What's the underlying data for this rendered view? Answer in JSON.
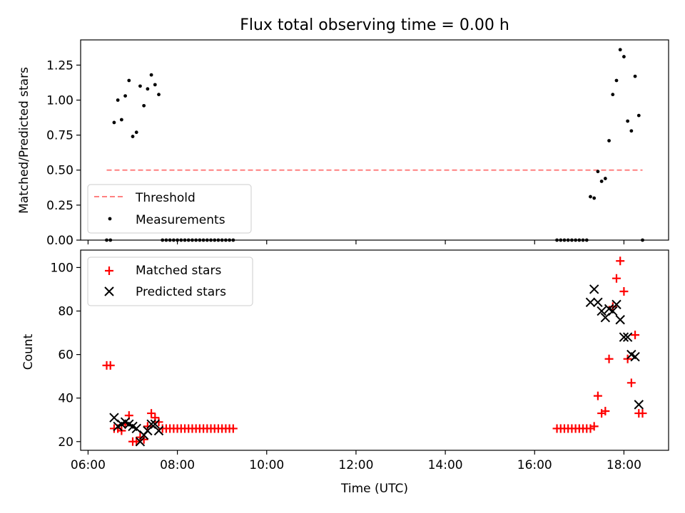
{
  "title": "Flux total observing time = 0.00 h",
  "chart_data": [
    {
      "type": "scatter",
      "ylabel": "Matched/Predicted stars",
      "xlim": [
        "05:50",
        "19:00"
      ],
      "ylim": [
        0,
        1.43
      ],
      "yticks": [
        0.0,
        0.25,
        0.5,
        0.75,
        1.0,
        1.25
      ],
      "ytick_labels": [
        "0.00",
        "0.25",
        "0.50",
        "0.75",
        "1.00",
        "1.25"
      ],
      "legend": {
        "placement": "lower-left",
        "entries": [
          "Threshold",
          "Measurements"
        ]
      },
      "threshold": {
        "name": "Threshold",
        "y": 0.5,
        "x_range": [
          "06:25",
          "18:25"
        ],
        "color": "#ff8080",
        "style": "dashed"
      },
      "series": [
        {
          "name": "Measurements",
          "color": "#000000",
          "marker": "dot",
          "points": [
            [
              "06:25",
              0
            ],
            [
              "06:30",
              0
            ],
            [
              "06:35",
              0.84
            ],
            [
              "06:40",
              1.0
            ],
            [
              "06:45",
              0.86
            ],
            [
              "06:50",
              1.03
            ],
            [
              "06:55",
              1.14
            ],
            [
              "07:00",
              0.74
            ],
            [
              "07:05",
              0.77
            ],
            [
              "07:10",
              1.1
            ],
            [
              "07:15",
              0.96
            ],
            [
              "07:20",
              1.08
            ],
            [
              "07:25",
              1.18
            ],
            [
              "07:30",
              1.11
            ],
            [
              "07:35",
              1.04
            ],
            [
              "07:40",
              0
            ],
            [
              "07:45",
              0
            ],
            [
              "07:50",
              0
            ],
            [
              "07:55",
              0
            ],
            [
              "08:00",
              0
            ],
            [
              "08:05",
              0
            ],
            [
              "08:10",
              0
            ],
            [
              "08:15",
              0
            ],
            [
              "08:20",
              0
            ],
            [
              "08:25",
              0
            ],
            [
              "08:30",
              0
            ],
            [
              "08:35",
              0
            ],
            [
              "08:40",
              0
            ],
            [
              "08:45",
              0
            ],
            [
              "08:50",
              0
            ],
            [
              "08:55",
              0
            ],
            [
              "09:00",
              0
            ],
            [
              "09:05",
              0
            ],
            [
              "09:10",
              0
            ],
            [
              "09:15",
              0
            ],
            [
              "16:30",
              0
            ],
            [
              "16:35",
              0
            ],
            [
              "16:40",
              0
            ],
            [
              "16:45",
              0
            ],
            [
              "16:50",
              0
            ],
            [
              "16:55",
              0
            ],
            [
              "17:00",
              0
            ],
            [
              "17:05",
              0
            ],
            [
              "17:10",
              0
            ],
            [
              "17:15",
              0.31
            ],
            [
              "17:20",
              0.3
            ],
            [
              "17:25",
              0.49
            ],
            [
              "17:30",
              0.42
            ],
            [
              "17:35",
              0.44
            ],
            [
              "17:40",
              0.71
            ],
            [
              "17:45",
              1.04
            ],
            [
              "17:50",
              1.14
            ],
            [
              "17:55",
              1.36
            ],
            [
              "18:00",
              1.31
            ],
            [
              "18:05",
              0.85
            ],
            [
              "18:10",
              0.78
            ],
            [
              "18:15",
              1.17
            ],
            [
              "18:20",
              0.89
            ],
            [
              "18:25",
              0
            ]
          ]
        }
      ]
    },
    {
      "type": "scatter",
      "xlabel": "Time (UTC)",
      "ylabel": "Count",
      "xlim": [
        "05:50",
        "19:00"
      ],
      "ylim": [
        16,
        108
      ],
      "xticks": [
        "06:00",
        "08:00",
        "10:00",
        "12:00",
        "14:00",
        "16:00",
        "18:00"
      ],
      "yticks": [
        20,
        40,
        60,
        80,
        100
      ],
      "ytick_labels": [
        "20",
        "40",
        "60",
        "80",
        "100"
      ],
      "legend": {
        "placement": "upper-left",
        "entries": [
          "Matched stars",
          "Predicted stars"
        ]
      },
      "series": [
        {
          "name": "Matched stars",
          "color": "#ff0000",
          "marker": "plus",
          "points": [
            [
              "06:25",
              55
            ],
            [
              "06:30",
              55
            ],
            [
              "06:35",
              26
            ],
            [
              "06:40",
              26
            ],
            [
              "06:45",
              25
            ],
            [
              "06:50",
              28
            ],
            [
              "06:55",
              32
            ],
            [
              "07:00",
              20
            ],
            [
              "07:05",
              20
            ],
            [
              "07:10",
              22
            ],
            [
              "07:15",
              21
            ],
            [
              "07:20",
              27
            ],
            [
              "07:25",
              33
            ],
            [
              "07:30",
              31
            ],
            [
              "07:35",
              29
            ],
            [
              "07:40",
              26
            ],
            [
              "07:45",
              26
            ],
            [
              "07:50",
              26
            ],
            [
              "07:55",
              26
            ],
            [
              "08:00",
              26
            ],
            [
              "08:05",
              26
            ],
            [
              "08:10",
              26
            ],
            [
              "08:15",
              26
            ],
            [
              "08:20",
              26
            ],
            [
              "08:25",
              26
            ],
            [
              "08:30",
              26
            ],
            [
              "08:35",
              26
            ],
            [
              "08:40",
              26
            ],
            [
              "08:45",
              26
            ],
            [
              "08:50",
              26
            ],
            [
              "08:55",
              26
            ],
            [
              "09:00",
              26
            ],
            [
              "09:05",
              26
            ],
            [
              "09:10",
              26
            ],
            [
              "09:15",
              26
            ],
            [
              "16:30",
              26
            ],
            [
              "16:35",
              26
            ],
            [
              "16:40",
              26
            ],
            [
              "16:45",
              26
            ],
            [
              "16:50",
              26
            ],
            [
              "16:55",
              26
            ],
            [
              "17:00",
              26
            ],
            [
              "17:05",
              26
            ],
            [
              "17:10",
              26
            ],
            [
              "17:15",
              26
            ],
            [
              "17:20",
              27
            ],
            [
              "17:25",
              41
            ],
            [
              "17:30",
              33
            ],
            [
              "17:35",
              34
            ],
            [
              "17:40",
              58
            ],
            [
              "17:45",
              82
            ],
            [
              "17:50",
              95
            ],
            [
              "17:55",
              103
            ],
            [
              "18:00",
              89
            ],
            [
              "18:05",
              58
            ],
            [
              "18:10",
              47
            ],
            [
              "18:15",
              69
            ],
            [
              "18:20",
              33
            ],
            [
              "18:25",
              33
            ]
          ]
        },
        {
          "name": "Predicted stars",
          "color": "#000000",
          "marker": "x",
          "points": [
            [
              "06:35",
              31
            ],
            [
              "06:40",
              27
            ],
            [
              "06:45",
              28
            ],
            [
              "06:50",
              29
            ],
            [
              "06:55",
              28
            ],
            [
              "07:00",
              27
            ],
            [
              "07:05",
              26
            ],
            [
              "07:10",
              20
            ],
            [
              "07:15",
              23
            ],
            [
              "07:20",
              25
            ],
            [
              "07:25",
              28
            ],
            [
              "07:30",
              28
            ],
            [
              "07:35",
              25
            ],
            [
              "17:15",
              84
            ],
            [
              "17:20",
              90
            ],
            [
              "17:25",
              84
            ],
            [
              "17:30",
              80
            ],
            [
              "17:35",
              77
            ],
            [
              "17:40",
              81
            ],
            [
              "17:45",
              80
            ],
            [
              "17:50",
              83
            ],
            [
              "17:55",
              76
            ],
            [
              "18:00",
              68
            ],
            [
              "18:05",
              68
            ],
            [
              "18:10",
              60
            ],
            [
              "18:15",
              59
            ],
            [
              "18:20",
              37
            ]
          ]
        }
      ]
    }
  ]
}
